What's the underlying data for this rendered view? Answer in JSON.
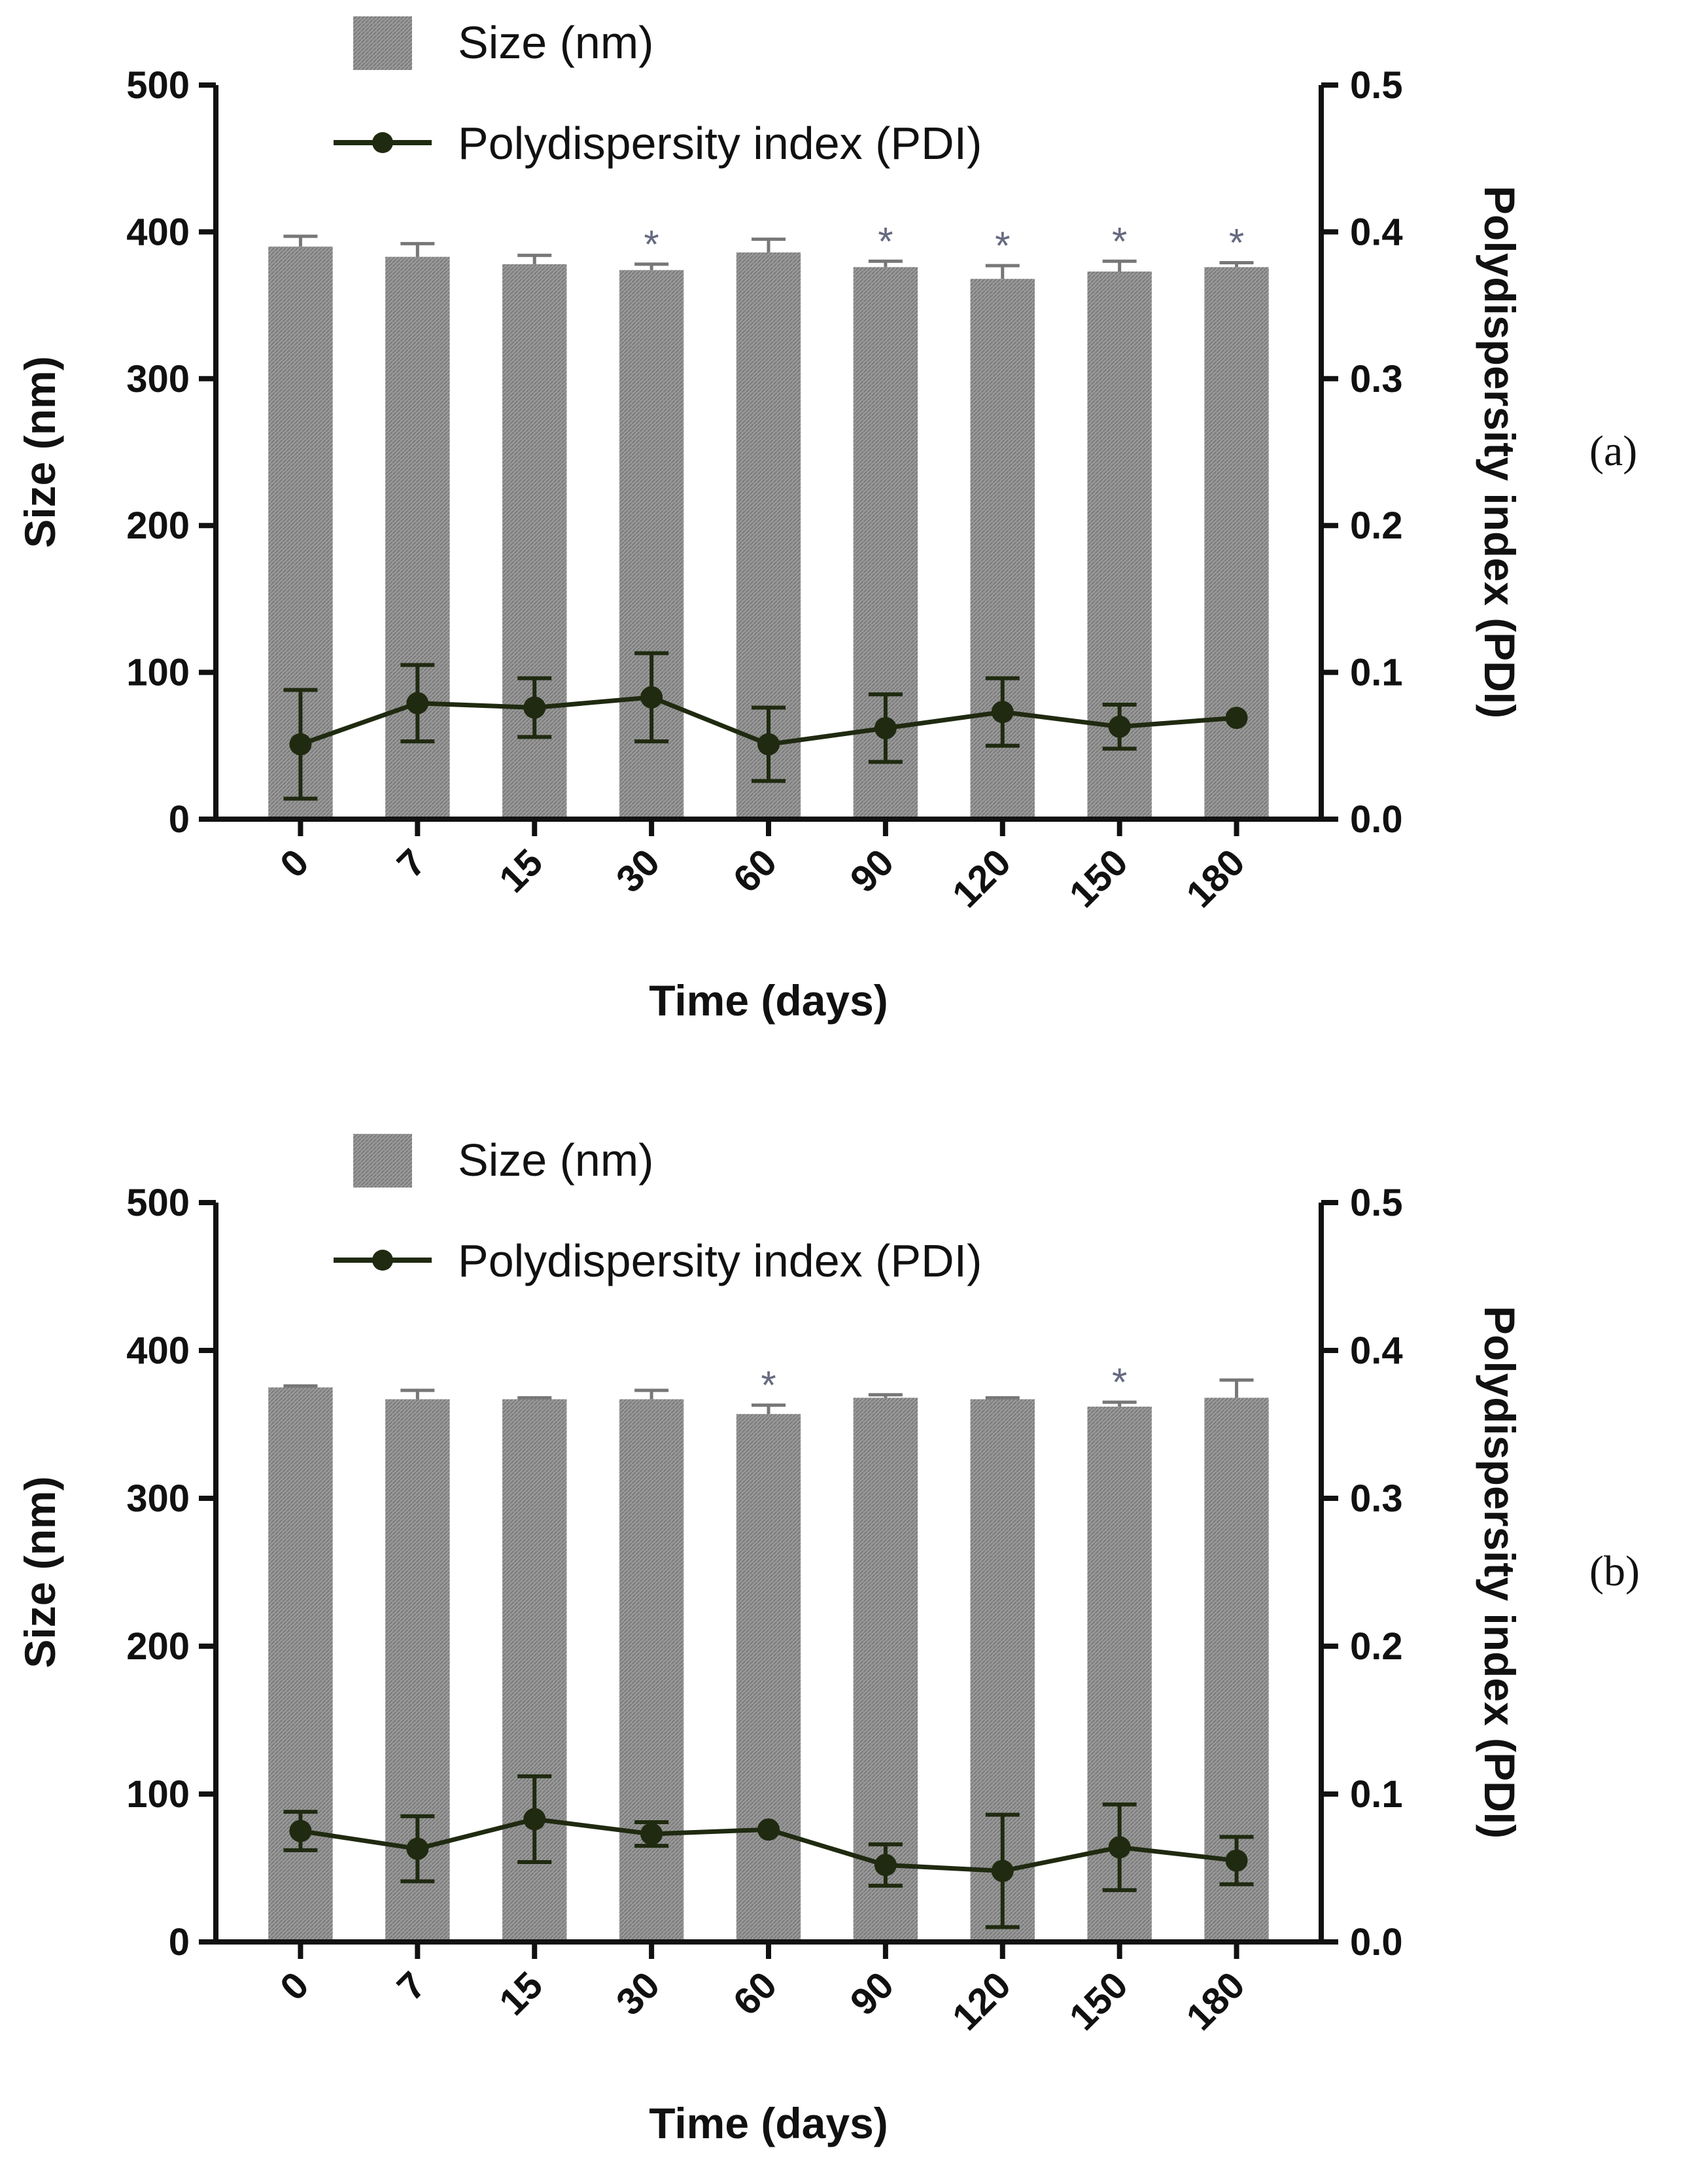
{
  "colors": {
    "bar": "#8f8f8f",
    "line": "#1f2a10",
    "axis": "#111111",
    "star": "#666a80"
  },
  "chart_data": [
    {
      "type": "bar",
      "panel_label": "(a)",
      "categories": [
        "0",
        "7",
        "15",
        "30",
        "60",
        "90",
        "120",
        "150",
        "180"
      ],
      "xlabel": "Time (days)",
      "ylabel": "Size (nm)",
      "y2label": "Polydispersity index (PDI)",
      "ylim": [
        0,
        500
      ],
      "y2lim": [
        0,
        0.5
      ],
      "yticks": [
        "0",
        "100",
        "200",
        "300",
        "400",
        "500"
      ],
      "y2ticks": [
        "0.0",
        "0.1",
        "0.2",
        "0.3",
        "0.4",
        "0.5"
      ],
      "legend": {
        "bar": "Size (nm)",
        "line": "Polydispersity index (PDI)"
      },
      "significance_mark": "*",
      "series": [
        {
          "name": "Size (nm)",
          "axis": "left",
          "values": [
            390,
            383,
            378,
            374,
            386,
            376,
            368,
            373,
            376
          ],
          "errors": [
            7,
            9,
            6,
            4,
            9,
            4,
            9,
            7,
            3
          ],
          "significant": [
            false,
            false,
            false,
            true,
            false,
            true,
            true,
            true,
            true
          ]
        },
        {
          "name": "Polydispersity index (PDI)",
          "axis": "right",
          "values": [
            0.051,
            0.079,
            0.076,
            0.083,
            0.051,
            0.062,
            0.073,
            0.063,
            0.069
          ],
          "errors": [
            0.037,
            0.026,
            0.02,
            0.03,
            0.025,
            0.023,
            0.023,
            0.015,
            0.0
          ]
        }
      ]
    },
    {
      "type": "bar",
      "panel_label": "(b)",
      "categories": [
        "0",
        "7",
        "15",
        "30",
        "60",
        "90",
        "120",
        "150",
        "180"
      ],
      "xlabel": "Time (days)",
      "ylabel": "Size (nm)",
      "y2label": "Polydispersity index (PDI)",
      "ylim": [
        0,
        500
      ],
      "y2lim": [
        0,
        0.5
      ],
      "yticks": [
        "0",
        "100",
        "200",
        "300",
        "400",
        "500"
      ],
      "y2ticks": [
        "0.0",
        "0.1",
        "0.2",
        "0.3",
        "0.4",
        "0.5"
      ],
      "legend": {
        "bar": "Size (nm)",
        "line": "Polydispersity index (PDI)"
      },
      "significance_mark": "*",
      "series": [
        {
          "name": "Size (nm)",
          "axis": "left",
          "values": [
            375,
            367,
            367,
            367,
            357,
            368,
            367,
            362,
            368
          ],
          "errors": [
            1,
            6,
            1,
            6,
            6,
            2,
            1,
            3,
            12
          ],
          "significant": [
            false,
            false,
            false,
            false,
            true,
            false,
            false,
            true,
            false
          ]
        },
        {
          "name": "Polydispersity index (PDI)",
          "axis": "right",
          "values": [
            0.075,
            0.063,
            0.083,
            0.073,
            0.076,
            0.052,
            0.048,
            0.064,
            0.055
          ],
          "errors": [
            0.013,
            0.022,
            0.029,
            0.008,
            0.0,
            0.014,
            0.038,
            0.029,
            0.016
          ]
        }
      ]
    }
  ]
}
